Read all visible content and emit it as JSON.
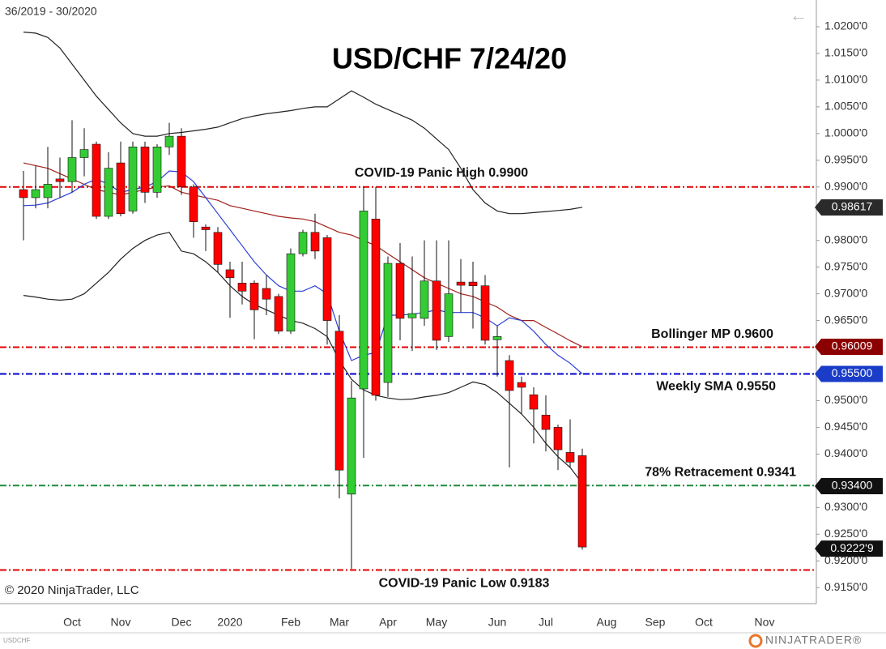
{
  "header": {
    "range": "36/2019 - 30/2020",
    "copyright": "© 2020 NinjaTrader, LLC",
    "symbol": "USDCHF",
    "brand": "NINJATRADER®"
  },
  "chart_data": {
    "type": "candlestick",
    "title": "USD/CHF 7/24/20",
    "categories": [
      null,
      null,
      null,
      null,
      "Oct",
      null,
      null,
      null,
      "Nov",
      null,
      null,
      null,
      null,
      "Dec",
      null,
      null,
      null,
      "2020",
      null,
      null,
      null,
      null,
      "Feb",
      null,
      null,
      null,
      "Mar",
      null,
      null,
      null,
      "Apr",
      null,
      null,
      null,
      "May",
      null,
      null,
      null,
      null,
      "Jun",
      null,
      null,
      null,
      "Jul",
      null,
      null,
      null,
      null,
      "Aug",
      null,
      null,
      null,
      "Sep",
      null,
      null,
      null,
      "Oct",
      null,
      null,
      null,
      null,
      "Nov",
      null,
      null,
      null,
      null
    ],
    "open": [
      0.9895,
      0.988,
      0.988,
      0.9915,
      0.991,
      0.9955,
      0.998,
      0.9845,
      0.9945,
      0.9855,
      0.9975,
      0.989,
      0.9975,
      0.9995,
      0.99,
      0.9825,
      0.9815,
      0.9745,
      0.972,
      0.972,
      0.971,
      0.9695,
      0.963,
      0.9775,
      0.9815,
      0.9805,
      0.963,
      0.9325,
      0.9522,
      0.984,
      0.9534,
      0.9757,
      0.9655,
      0.9654,
      0.9724,
      0.962,
      0.9722,
      0.9722,
      0.9715,
      0.9614,
      0.9575,
      0.9534,
      0.9511,
      0.9473,
      0.945,
      0.9403,
      0.9397,
      null,
      null,
      null,
      null,
      null,
      null,
      null,
      null,
      null,
      null,
      null,
      null,
      null,
      null,
      null,
      null,
      null,
      null,
      null
    ],
    "high": [
      0.993,
      0.994,
      0.9975,
      0.9955,
      1.0025,
      1.001,
      0.9985,
      0.9965,
      0.9985,
      0.9985,
      0.9985,
      0.998,
      1.002,
      1.001,
      0.9905,
      0.983,
      0.9825,
      0.976,
      0.976,
      0.9725,
      0.9735,
      0.97,
      0.9785,
      0.982,
      0.985,
      0.981,
      0.966,
      0.9537,
      0.99,
      0.99,
      0.977,
      0.9795,
      0.977,
      0.98,
      0.98,
      0.98,
      0.9765,
      0.976,
      0.9735,
      0.964,
      0.9585,
      0.9545,
      0.9525,
      0.951,
      0.9455,
      0.9465,
      0.941,
      null,
      null,
      null,
      null,
      null,
      null,
      null,
      null,
      null,
      null,
      null,
      null,
      null,
      null,
      null,
      null,
      null,
      null,
      null
    ],
    "low": [
      0.98,
      0.986,
      0.986,
      0.988,
      0.989,
      0.992,
      0.984,
      0.984,
      0.9845,
      0.985,
      0.987,
      0.988,
      0.996,
      0.9885,
      0.9805,
      0.978,
      0.974,
      0.9655,
      0.968,
      0.9615,
      0.966,
      0.9625,
      0.9625,
      0.977,
      0.9765,
      0.9605,
      0.9317,
      0.9185,
      0.9393,
      0.95,
      0.9507,
      0.9613,
      0.9593,
      0.964,
      0.9595,
      0.961,
      0.9665,
      0.9635,
      0.9605,
      0.9545,
      0.9375,
      0.9475,
      0.942,
      0.9405,
      0.937,
      0.9375,
      0.9221,
      null,
      null,
      null,
      null,
      null,
      null,
      null,
      null,
      null,
      null,
      null,
      null,
      null,
      null,
      null,
      null,
      null,
      null,
      null
    ],
    "close": [
      0.988,
      0.9895,
      0.9905,
      0.991,
      0.9955,
      0.997,
      0.9845,
      0.9935,
      0.985,
      0.9975,
      0.989,
      0.9975,
      0.9995,
      0.99,
      0.9835,
      0.982,
      0.9755,
      0.973,
      0.9705,
      0.967,
      0.969,
      0.963,
      0.9775,
      0.9815,
      0.978,
      0.965,
      0.937,
      0.9505,
      0.9855,
      0.951,
      0.9757,
      0.9654,
      0.9663,
      0.9724,
      0.9613,
      0.97,
      0.9716,
      0.9715,
      0.9613,
      0.962,
      0.9519,
      0.9525,
      0.9484,
      0.9446,
      0.9408,
      0.9385,
      0.9226,
      null,
      null,
      null,
      null,
      null,
      null,
      null,
      null,
      null,
      null,
      null,
      null,
      null,
      null,
      null,
      null,
      null,
      null,
      null
    ],
    "up_color": "#33cc33",
    "down_color": "#ff0000",
    "lines": [
      {
        "color": "#222222",
        "values": [
          1.019,
          1.0188,
          1.018,
          1.016,
          1.013,
          1.01,
          1.007,
          1.0045,
          1.002,
          1.0,
          0.9995,
          0.9995,
          1.0,
          1.0002,
          1.0005,
          1.0008,
          1.0012,
          1.002,
          1.0028,
          1.0033,
          1.0037,
          1.004,
          1.0043,
          1.0047,
          1.005,
          1.005,
          1.0065,
          1.008,
          1.0068,
          1.0055,
          1.0045,
          1.0035,
          1.0025,
          1.001,
          0.999,
          0.997,
          0.9935,
          0.9895,
          0.987,
          0.9855,
          0.985,
          0.985,
          0.9852,
          0.9854,
          0.9856,
          0.9858,
          0.9862,
          null,
          null,
          null,
          null,
          null,
          null,
          null,
          null,
          null,
          null,
          null,
          null,
          null,
          null,
          null,
          null,
          null,
          null,
          null
        ]
      },
      {
        "color": "#222222",
        "values": [
          0.9697,
          0.9694,
          0.969,
          0.9688,
          0.969,
          0.97,
          0.972,
          0.974,
          0.9765,
          0.9785,
          0.98,
          0.981,
          0.9815,
          0.978,
          0.9775,
          0.976,
          0.974,
          0.9715,
          0.9695,
          0.968,
          0.967,
          0.966,
          0.965,
          0.9645,
          0.9635,
          0.962,
          0.9575,
          0.954,
          0.952,
          0.951,
          0.9505,
          0.9502,
          0.9503,
          0.9507,
          0.951,
          0.9515,
          0.9525,
          0.9535,
          0.953,
          0.9515,
          0.9495,
          0.9475,
          0.945,
          0.942,
          0.9395,
          0.9375,
          0.9345,
          null,
          null,
          null,
          null,
          null,
          null,
          null,
          null,
          null,
          null,
          null,
          null,
          null,
          null,
          null,
          null,
          null,
          null,
          null
        ]
      },
      {
        "color": "#a0201a",
        "values": [
          0.9945,
          0.994,
          0.9935,
          0.9925,
          0.9915,
          0.9905,
          0.9895,
          0.989,
          0.9885,
          0.989,
          0.9895,
          0.99,
          0.9902,
          0.989,
          0.9885,
          0.988,
          0.9875,
          0.9865,
          0.986,
          0.9855,
          0.985,
          0.9845,
          0.9842,
          0.984,
          0.9835,
          0.9825,
          0.9815,
          0.981,
          0.98,
          0.979,
          0.9775,
          0.976,
          0.9745,
          0.973,
          0.972,
          0.971,
          0.97,
          0.9695,
          0.9685,
          0.9675,
          0.966,
          0.965,
          0.965,
          0.9637,
          0.9625,
          0.9612,
          0.9601,
          null,
          null,
          null,
          null,
          null,
          null,
          null,
          null,
          null,
          null,
          null,
          null,
          null,
          null,
          null,
          null,
          null,
          null,
          null
        ]
      },
      {
        "color": "#2b3fd6",
        "values": [
          0.9865,
          0.9866,
          0.987,
          0.988,
          0.989,
          0.9905,
          0.9915,
          0.9905,
          0.989,
          0.9895,
          0.99,
          0.991,
          0.993,
          0.9928,
          0.991,
          0.988,
          0.985,
          0.982,
          0.979,
          0.976,
          0.9735,
          0.9715,
          0.9705,
          0.9705,
          0.9715,
          0.97,
          0.963,
          0.9575,
          0.9585,
          0.959,
          0.966,
          0.966,
          0.9662,
          0.9665,
          0.967,
          0.9665,
          0.9665,
          0.9665,
          0.9655,
          0.964,
          0.9655,
          0.965,
          0.963,
          0.9605,
          0.9585,
          0.957,
          0.955,
          null,
          null,
          null,
          null,
          null,
          null,
          null,
          null,
          null,
          null,
          null,
          null,
          null,
          null,
          null,
          null,
          null,
          null,
          null
        ]
      }
    ],
    "levels": [
      {
        "value": 0.99,
        "label": "COVID-19 Panic High 0.9900",
        "color": "#e00000"
      },
      {
        "value": 0.96,
        "label": "Bollinger MP 0.9600",
        "color": "#e00000"
      },
      {
        "value": 0.955,
        "label": "Weekly SMA  0.9550",
        "color": "#0000cc"
      },
      {
        "value": 0.9341,
        "label": "78% Retracement 0.9341",
        "color": "#1e8c3a"
      },
      {
        "value": 0.9183,
        "label": "COVID-19 Panic Low 0.9183",
        "color": "#e00000"
      }
    ],
    "price_markers": [
      {
        "value": 0.98617,
        "label": "0.98617",
        "color": "#2a2a2a"
      },
      {
        "value": 0.96009,
        "label": "0.96009",
        "color": "#8b0000"
      },
      {
        "value": 0.955,
        "label": "0.95500",
        "color": "#1a3cc8"
      },
      {
        "value": 0.934,
        "label": "0.93400",
        "color": "#111111"
      },
      {
        "value": 0.92229,
        "label": "0.9222'9",
        "color": "#111111"
      }
    ],
    "ylim": [
      0.912,
      1.025
    ],
    "yticks": [
      {
        "value": 1.02,
        "label": "1.0200'0"
      },
      {
        "value": 1.015,
        "label": "1.0150'0"
      },
      {
        "value": 1.01,
        "label": "1.0100'0"
      },
      {
        "value": 1.005,
        "label": "1.0050'0"
      },
      {
        "value": 1.0,
        "label": "1.0000'0"
      },
      {
        "value": 0.995,
        "label": "0.9950'0"
      },
      {
        "value": 0.99,
        "label": "0.9900'0"
      },
      {
        "value": 0.98,
        "label": "0.9800'0"
      },
      {
        "value": 0.975,
        "label": "0.9750'0"
      },
      {
        "value": 0.97,
        "label": "0.9700'0"
      },
      {
        "value": 0.965,
        "label": "0.9650'0"
      },
      {
        "value": 0.95,
        "label": "0.9500'0"
      },
      {
        "value": 0.945,
        "label": "0.9450'0"
      },
      {
        "value": 0.94,
        "label": "0.9400'0"
      },
      {
        "value": 0.93,
        "label": "0.9300'0"
      },
      {
        "value": 0.925,
        "label": "0.9250'0"
      },
      {
        "value": 0.92,
        "label": "0.9200'0"
      },
      {
        "value": 0.915,
        "label": "0.9150'0"
      }
    ]
  }
}
